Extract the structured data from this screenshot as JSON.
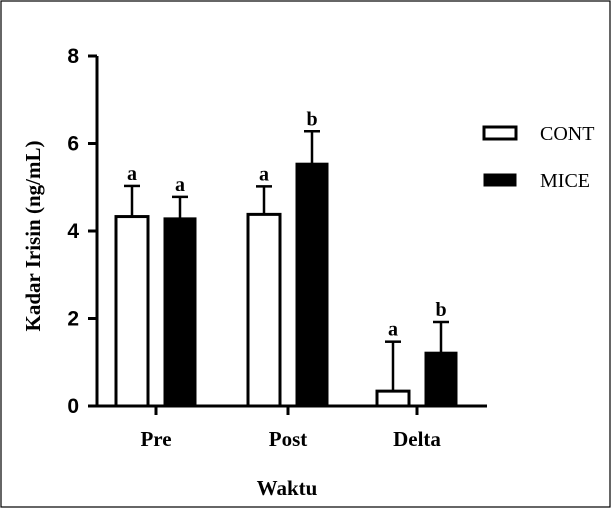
{
  "chart_data": {
    "type": "bar",
    "title": "",
    "xlabel": "Waktu",
    "ylabel": "Kadar Irisin (ng/mL)",
    "ylim": [
      0,
      8
    ],
    "yticks": [
      0,
      2,
      4,
      6,
      8
    ],
    "categories": [
      "Pre",
      "Post",
      "Delta"
    ],
    "series": [
      {
        "name": "CONT",
        "color": "#ffffff",
        "values": [
          4.33,
          4.38,
          0.34
        ],
        "error_upper": [
          5.03,
          5.02,
          1.47
        ],
        "significance": [
          "a",
          "a",
          "a"
        ]
      },
      {
        "name": "MICE",
        "color": "#000000",
        "values": [
          4.3,
          5.55,
          1.23
        ],
        "error_upper": [
          4.78,
          6.28,
          1.92
        ],
        "significance": [
          "a",
          "b",
          "b"
        ]
      }
    ],
    "legend_position": "right",
    "grid": false
  }
}
